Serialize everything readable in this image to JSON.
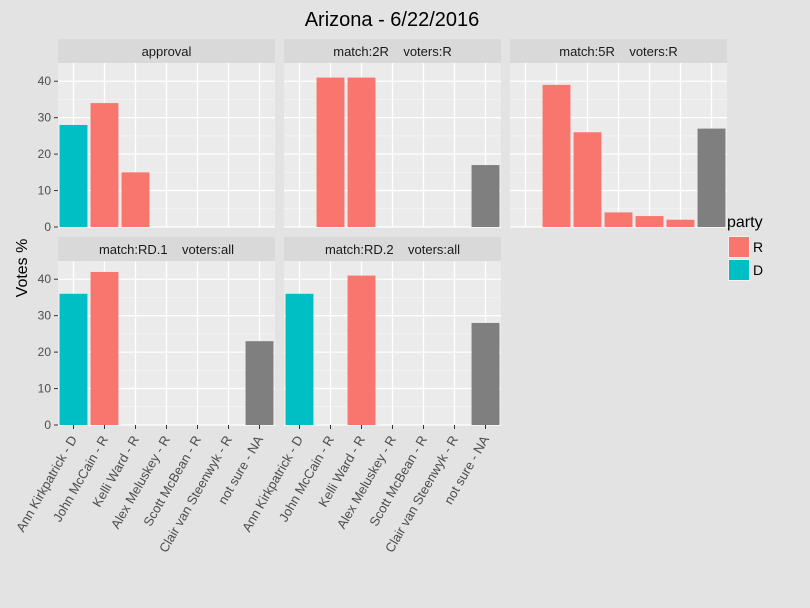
{
  "chart_data": {
    "type": "bar",
    "title": "Arizona - 6/22/2016",
    "ylabel": "Votes %",
    "ylim": [
      0,
      45
    ],
    "yticks": [
      0,
      10,
      20,
      30,
      40
    ],
    "categories": [
      "Ann Kirkpatrick - D",
      "John McCain - R",
      "Kelli Ward - R",
      "Alex Meluskey - R",
      "Scott McBean - R",
      "Clair van Steenwyk - R",
      "not sure - NA"
    ],
    "category_party": [
      "D",
      "R",
      "R",
      "R",
      "R",
      "R",
      "NA"
    ],
    "party_colors": {
      "R": "#f8766d",
      "D": "#00bfc4",
      "NA": "#7f7f7f"
    },
    "legend": {
      "title": "party",
      "position": "right",
      "entries": [
        {
          "label": "R",
          "color": "#f8766d"
        },
        {
          "label": "D",
          "color": "#00bfc4"
        }
      ]
    },
    "grid": true,
    "facets": [
      {
        "label": "approval",
        "values": [
          28,
          34,
          15,
          null,
          null,
          null,
          null
        ]
      },
      {
        "label": "match:2R    voters:R",
        "values": [
          null,
          41,
          41,
          null,
          null,
          null,
          17
        ]
      },
      {
        "label": "match:5R    voters:R",
        "values": [
          null,
          39,
          26,
          4,
          3,
          2,
          27
        ]
      },
      {
        "label": "match:RD.1    voters:all",
        "values": [
          36,
          42,
          null,
          null,
          null,
          null,
          23
        ]
      },
      {
        "label": "match:RD.2    voters:all",
        "values": [
          36,
          null,
          41,
          null,
          null,
          null,
          28
        ]
      }
    ]
  }
}
